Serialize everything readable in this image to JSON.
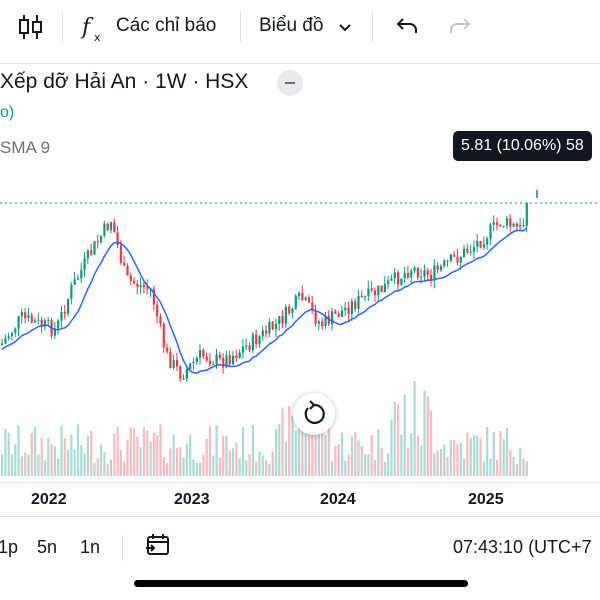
{
  "toolbar": {
    "candles_icon": "candlestick-icon",
    "indicators_label": "Các chỉ báo",
    "chart_type_label": "Biểu đồ",
    "undo_icon": "undo-icon",
    "redo_icon": "redo-icon"
  },
  "legend": {
    "title": "Xếp dỡ Hải An · 1W · HSX",
    "sub": "o)",
    "sma": "SMA 9"
  },
  "price_label": {
    "change": "5.81 (10.06%)",
    "price": "58"
  },
  "chart_data": {
    "type": "candlestick",
    "x_labels": [
      "2022",
      "2023",
      "2024",
      "2025"
    ],
    "last_value_line": "dotted, green",
    "colors": {
      "up": "#089981",
      "down": "#f23645",
      "sma": "#2962ff"
    }
  },
  "xaxis": {
    "labels": [
      "2022",
      "2023",
      "2024",
      "2025"
    ]
  },
  "bottom": {
    "ranges": [
      "1p",
      "5n",
      "1n"
    ],
    "time": "07:43:10 (UTC+7"
  }
}
